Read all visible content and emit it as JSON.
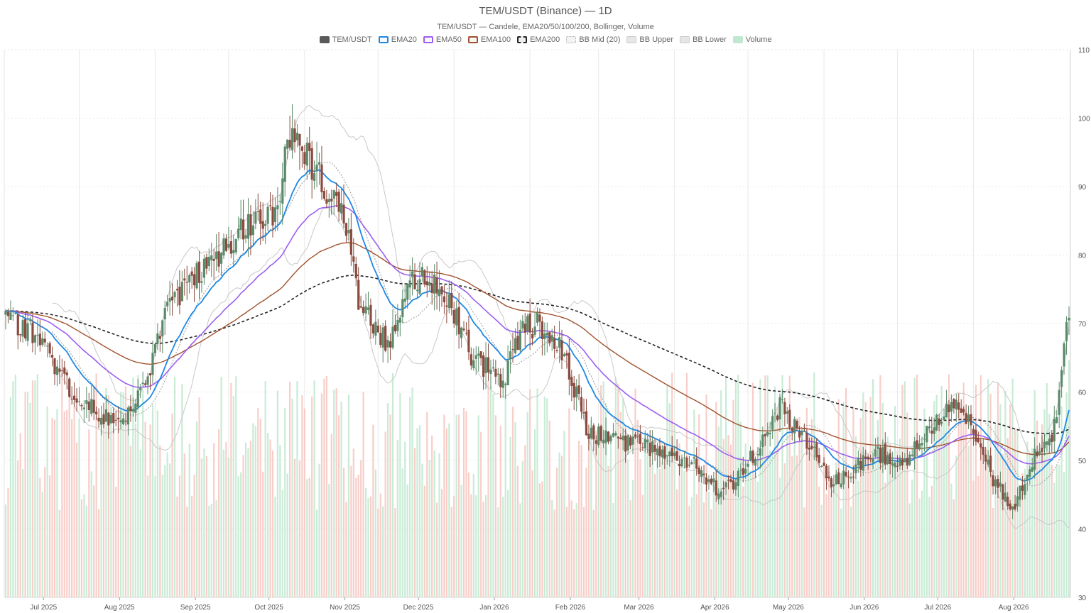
{
  "chart": {
    "title": "TEM/USDT (Binance) — 1D",
    "subtitle": "TEM/USDT — Candele, EMA20/50/100/200, Bollinger, Volume"
  },
  "legend": [
    {
      "label": "TEM/USDT",
      "color": "#5a5a5a",
      "style": "solid"
    },
    {
      "label": "EMA20",
      "color": "#1e88e5",
      "style": "outline"
    },
    {
      "label": "EMA50",
      "color": "#9c5ff0",
      "style": "outline"
    },
    {
      "label": "EMA100",
      "color": "#a0522d",
      "style": "outline"
    },
    {
      "label": "EMA200",
      "color": "#222222",
      "style": "dashed"
    },
    {
      "label": "BB Mid (20)",
      "color": "#aaaaaa",
      "style": "dotted"
    },
    {
      "label": "BB Upper",
      "color": "#cccccc",
      "style": "light"
    },
    {
      "label": "BB Lower",
      "color": "#cccccc",
      "style": "light"
    },
    {
      "label": "Volume",
      "color": "#bfe8cf",
      "style": "fill"
    }
  ],
  "colors": {
    "up": "#5a8a6a",
    "down": "#8b4a3e",
    "vol_up": "#bfe8cf",
    "vol_down": "#f7c5bf",
    "grid": "#e8e8e8",
    "ema20": "#1e88e5",
    "ema50": "#9c5ff0",
    "ema100": "#a0522d",
    "ema200": "#222222",
    "bb": "#c8c8c8",
    "bbmid": "#999999"
  },
  "chart_data": {
    "type": "candlestick",
    "title": "TEM/USDT (Binance) — 1D",
    "subtitle": "TEM/USDT — Candele, EMA20/50/100/200, Bollinger, Volume",
    "x_tick_labels": [
      "Jul 2025",
      "Aug 2025",
      "Sep 2025",
      "Oct 2025",
      "Nov 2025",
      "Dec 2025",
      "Jan 2026",
      "Feb 2026",
      "Mar 2026",
      "Apr 2026",
      "May 2026",
      "Jun 2026",
      "Jul 2026",
      "Aug 2026"
    ],
    "x_range": [
      "2025-06-17",
      "2026-08-25"
    ],
    "y_ticks": [
      30,
      40,
      50,
      60,
      70,
      80,
      90,
      100,
      110
    ],
    "ylim": [
      30,
      110
    ],
    "grid": true,
    "legend_position": "top-center",
    "price_anchors": [
      [
        "2025-06-17",
        71
      ],
      [
        "2025-07-01",
        68
      ],
      [
        "2025-07-15",
        59
      ],
      [
        "2025-07-25",
        57
      ],
      [
        "2025-08-04",
        56
      ],
      [
        "2025-08-12",
        60
      ],
      [
        "2025-08-22",
        72
      ],
      [
        "2025-09-03",
        77
      ],
      [
        "2025-09-13",
        80
      ],
      [
        "2025-09-23",
        84
      ],
      [
        "2025-10-05",
        86
      ],
      [
        "2025-10-12",
        100
      ],
      [
        "2025-10-20",
        93
      ],
      [
        "2025-11-02",
        86
      ],
      [
        "2025-11-08",
        73
      ],
      [
        "2025-11-20",
        67
      ],
      [
        "2025-12-01",
        77
      ],
      [
        "2025-12-12",
        76
      ],
      [
        "2025-12-24",
        65
      ],
      [
        "2026-01-06",
        62
      ],
      [
        "2026-01-14",
        69
      ],
      [
        "2026-01-21",
        70
      ],
      [
        "2026-01-30",
        66
      ],
      [
        "2026-02-10",
        54
      ],
      [
        "2026-02-22",
        53
      ],
      [
        "2026-03-04",
        52
      ],
      [
        "2026-03-14",
        51
      ],
      [
        "2026-03-26",
        49
      ],
      [
        "2026-04-05",
        45
      ],
      [
        "2026-04-15",
        49
      ],
      [
        "2026-04-22",
        53
      ],
      [
        "2026-04-29",
        58
      ],
      [
        "2026-05-10",
        53
      ],
      [
        "2026-05-20",
        47
      ],
      [
        "2026-05-30",
        49
      ],
      [
        "2026-06-08",
        51
      ],
      [
        "2026-06-20",
        50
      ],
      [
        "2026-06-30",
        55
      ],
      [
        "2026-07-08",
        58
      ],
      [
        "2026-07-16",
        56
      ],
      [
        "2026-07-24",
        48
      ],
      [
        "2026-08-02",
        43
      ],
      [
        "2026-08-12",
        52
      ],
      [
        "2026-08-18",
        52
      ],
      [
        "2026-08-25",
        72
      ]
    ],
    "annotations": [
      "high near 103 in mid Oct 2025",
      "low near 41 in early Aug 2026",
      "last close near 72"
    ]
  }
}
